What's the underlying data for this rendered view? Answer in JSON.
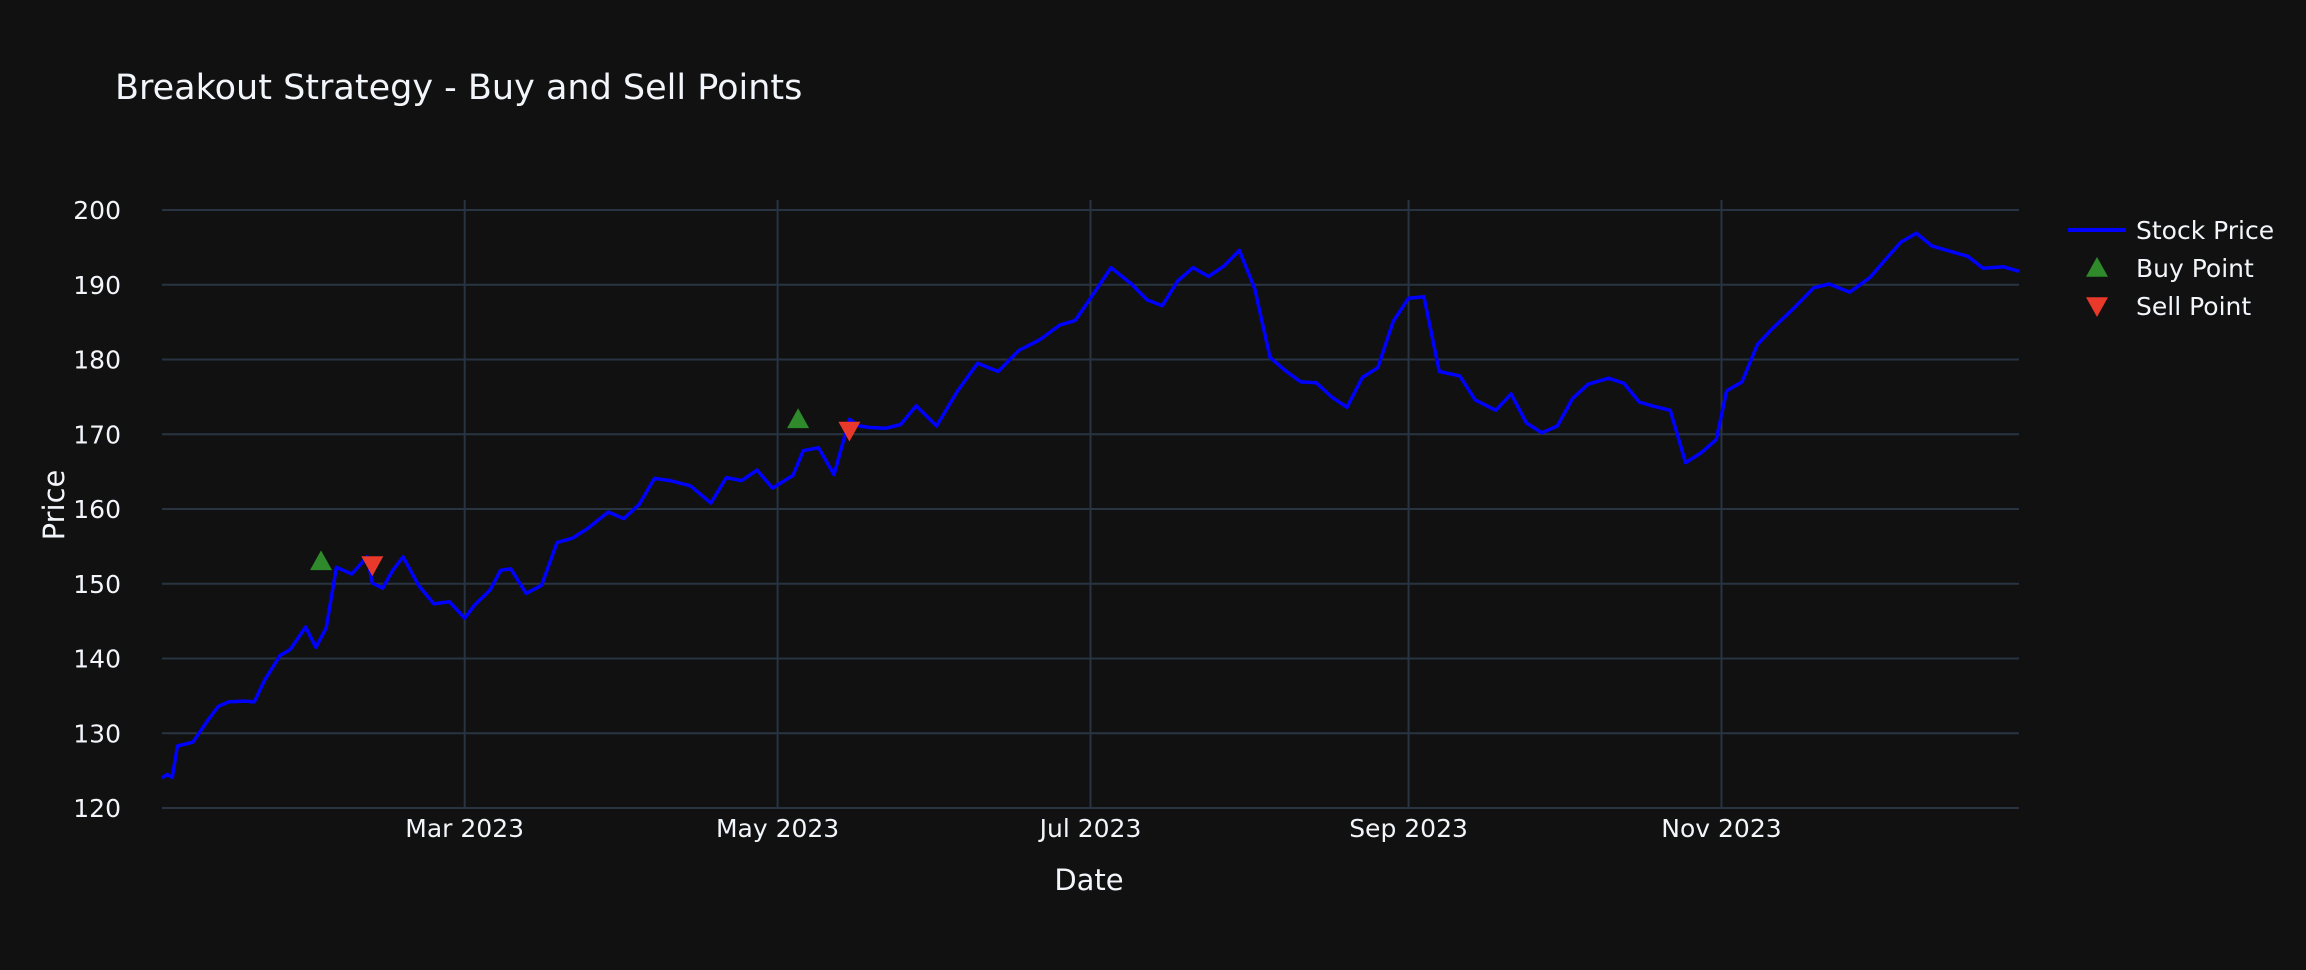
{
  "chart_data": {
    "type": "line",
    "title": "Breakout Strategy - Buy and Sell Points",
    "xlabel": "Date",
    "ylabel": "Price",
    "x_range": [
      "2023-01-01",
      "2023-12-29"
    ],
    "ylim": [
      120,
      200
    ],
    "y_ticks": [
      120,
      130,
      140,
      150,
      160,
      170,
      180,
      190,
      200
    ],
    "x_ticks": [
      {
        "date": "2023-03-01",
        "label": "Mar 2023"
      },
      {
        "date": "2023-05-01",
        "label": "May 2023"
      },
      {
        "date": "2023-07-01",
        "label": "Jul 2023"
      },
      {
        "date": "2023-09-01",
        "label": "Sep 2023"
      },
      {
        "date": "2023-11-01",
        "label": "Nov 2023"
      }
    ],
    "grid": true,
    "legend_position": "right",
    "series": [
      {
        "name": "Stock Price",
        "kind": "line",
        "color": "#0000ff",
        "x": [
          "2023-01-01",
          "2023-01-02",
          "2023-01-03",
          "2023-01-04",
          "2023-01-07",
          "2023-01-10",
          "2023-01-12",
          "2023-01-14",
          "2023-01-17",
          "2023-01-19",
          "2023-01-21",
          "2023-01-24",
          "2023-01-26",
          "2023-01-29",
          "2023-01-31",
          "2023-02-02",
          "2023-02-04",
          "2023-02-07",
          "2023-02-10",
          "2023-02-11",
          "2023-02-13",
          "2023-02-15",
          "2023-02-17",
          "2023-02-20",
          "2023-02-23",
          "2023-02-26",
          "2023-03-01",
          "2023-03-03",
          "2023-03-06",
          "2023-03-08",
          "2023-03-10",
          "2023-03-13",
          "2023-03-16",
          "2023-03-19",
          "2023-03-22",
          "2023-03-25",
          "2023-03-29",
          "2023-04-01",
          "2023-04-04",
          "2023-04-07",
          "2023-04-10",
          "2023-04-14",
          "2023-04-18",
          "2023-04-21",
          "2023-04-24",
          "2023-04-27",
          "2023-04-30",
          "2023-05-04",
          "2023-05-06",
          "2023-05-09",
          "2023-05-12",
          "2023-05-15",
          "2023-05-17",
          "2023-05-19",
          "2023-05-22",
          "2023-05-25",
          "2023-05-28",
          "2023-06-01",
          "2023-06-05",
          "2023-06-09",
          "2023-06-13",
          "2023-06-17",
          "2023-06-21",
          "2023-06-25",
          "2023-06-28",
          "2023-07-01",
          "2023-07-05",
          "2023-07-09",
          "2023-07-12",
          "2023-07-15",
          "2023-07-18",
          "2023-07-21",
          "2023-07-24",
          "2023-07-27",
          "2023-07-30",
          "2023-08-02",
          "2023-08-05",
          "2023-08-08",
          "2023-08-11",
          "2023-08-14",
          "2023-08-17",
          "2023-08-20",
          "2023-08-23",
          "2023-08-26",
          "2023-08-29",
          "2023-09-01",
          "2023-09-04",
          "2023-09-07",
          "2023-09-11",
          "2023-09-14",
          "2023-09-18",
          "2023-09-21",
          "2023-09-24",
          "2023-09-27",
          "2023-09-30",
          "2023-10-03",
          "2023-10-06",
          "2023-10-10",
          "2023-10-13",
          "2023-10-16",
          "2023-10-19",
          "2023-10-22",
          "2023-10-25",
          "2023-10-28",
          "2023-10-31",
          "2023-11-02",
          "2023-11-05",
          "2023-11-08",
          "2023-11-11",
          "2023-11-15",
          "2023-11-19",
          "2023-11-22",
          "2023-11-26",
          "2023-11-30",
          "2023-12-03",
          "2023-12-06",
          "2023-12-09",
          "2023-12-12",
          "2023-12-15",
          "2023-12-19",
          "2023-12-22",
          "2023-12-26",
          "2023-12-29"
        ],
        "values": [
          124,
          124.5,
          124.1,
          128.3,
          128.8,
          131.8,
          133.6,
          134.2,
          134.3,
          134.2,
          137.1,
          140.4,
          141.2,
          144.2,
          141.5,
          144.1,
          152.2,
          151.3,
          153.6,
          150.1,
          149.4,
          151.8,
          153.6,
          149.8,
          147.3,
          147.6,
          145.4,
          147.2,
          149.2,
          151.8,
          152.0,
          148.7,
          149.8,
          155.5,
          156.1,
          157.4,
          159.6,
          158.7,
          160.6,
          164.1,
          163.8,
          163.1,
          160.8,
          164.2,
          163.8,
          165.2,
          162.8,
          164.5,
          167.8,
          168.2,
          164.6,
          172.0,
          171.1,
          170.9,
          170.8,
          171.3,
          173.8,
          171.1,
          175.7,
          179.5,
          178.4,
          181.2,
          182.6,
          184.6,
          185.2,
          188.2,
          192.3,
          190.1,
          188.0,
          187.2,
          190.5,
          192.3,
          191.1,
          192.5,
          194.6,
          189.5,
          180.3,
          178.5,
          177.0,
          176.9,
          175.0,
          173.6,
          177.6,
          178.9,
          185.1,
          188.2,
          188.4,
          178.4,
          177.8,
          174.6,
          173.2,
          175.4,
          171.5,
          170.2,
          171.1,
          174.8,
          176.7,
          177.5,
          176.8,
          174.3,
          173.7,
          173.2,
          166.2,
          167.5,
          169.3,
          175.8,
          177.0,
          182.0,
          184.2,
          186.8,
          189.6,
          190.1,
          189.0,
          191.0,
          193.4,
          195.7,
          196.9,
          195.2,
          194.6,
          193.8,
          192.2,
          192.4,
          191.8
        ]
      },
      {
        "name": "Buy Point",
        "kind": "marker-up",
        "color": "#2f8a2b",
        "points": [
          {
            "x": "2023-02-01",
            "y": 153
          },
          {
            "x": "2023-05-05",
            "y": 172
          }
        ]
      },
      {
        "name": "Sell Point",
        "kind": "marker-down",
        "color": "#e8392b",
        "points": [
          {
            "x": "2023-02-11",
            "y": 152.5
          },
          {
            "x": "2023-05-15",
            "y": 170.5
          }
        ]
      }
    ]
  }
}
